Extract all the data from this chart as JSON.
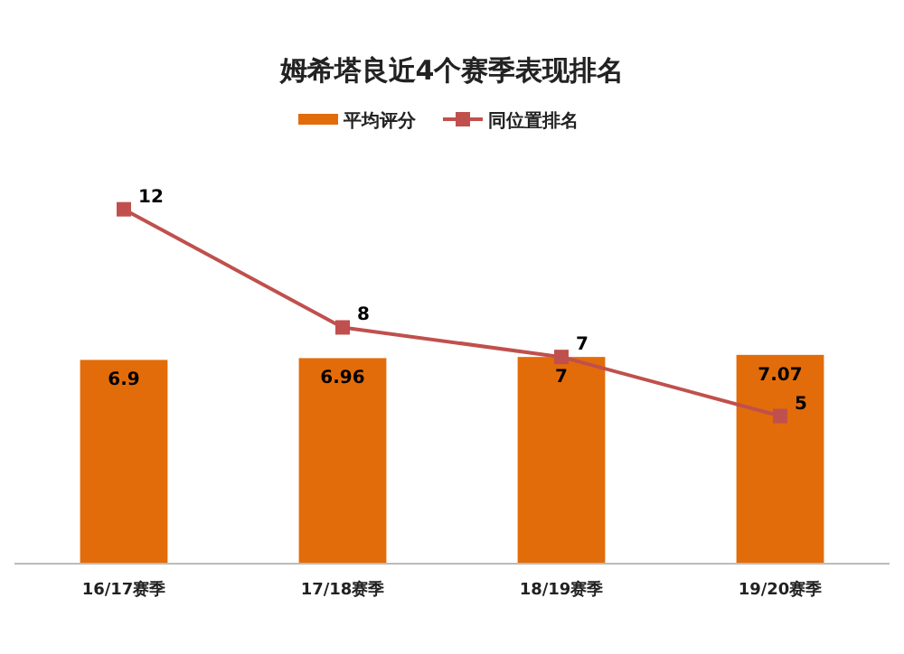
{
  "chart_data": {
    "type": "bar",
    "title": "姆希塔良近4个赛季表现排名",
    "categories": [
      "16/17赛季",
      "17/18赛季",
      "18/19赛季",
      "19/20赛季"
    ],
    "series": [
      {
        "name": "平均评分",
        "color": "#e36c0a",
        "values": [
          6.9,
          6.96,
          7,
          7.07
        ]
      },
      {
        "name": "同位置排名",
        "type": "line",
        "color": "#c0504d",
        "values": [
          12,
          8,
          7,
          5
        ]
      }
    ],
    "tick_labels": "x",
    "data_labels": true,
    "legend": "top",
    "marker": "square"
  }
}
